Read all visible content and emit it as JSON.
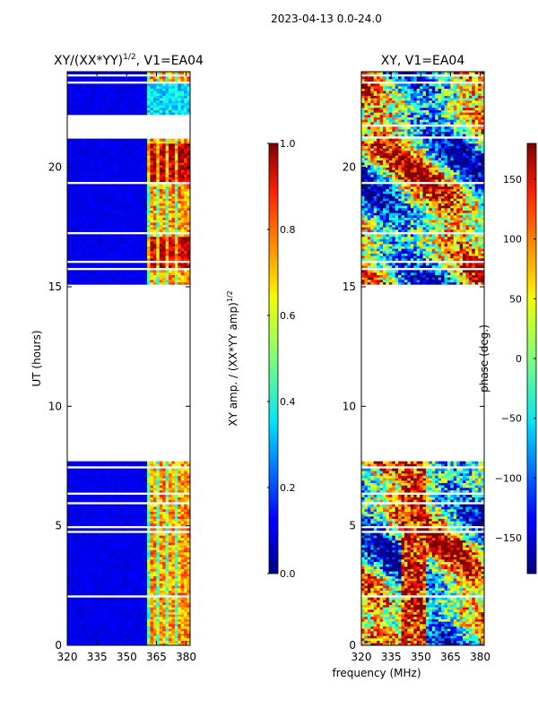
{
  "figure": {
    "suptitle": "2023-04-13 0.0-24.0",
    "xlabel": "frequency (MHz)"
  },
  "chart_data": [
    {
      "type": "heatmap",
      "title_main": "XY/(XX*YY)",
      "title_sup": "1/2",
      "title_rest": ", V1=EA04",
      "xlabel": "",
      "ylabel": "UT (hours)",
      "xlim": [
        320,
        382
      ],
      "ylim": [
        0,
        24
      ],
      "xticks": [
        320,
        335,
        350,
        365,
        380
      ],
      "yticks": [
        0,
        5,
        10,
        15,
        20
      ],
      "no_data_hours": [
        7.6,
        15.0
      ],
      "active_band_mhz": [
        360,
        382
      ],
      "colorbar": {
        "label_main": "XY amp. / (XX*YY amp)",
        "label_sup": "1/2",
        "range": [
          0.0,
          1.0
        ],
        "ticks": [
          "0.0",
          "0.2",
          "0.4",
          "0.6",
          "0.8",
          "1.0"
        ]
      }
    },
    {
      "type": "heatmap",
      "title_main": "XY, V1=EA04",
      "xlabel": "",
      "ylabel": "",
      "xlim": [
        320,
        382
      ],
      "ylim": [
        0,
        24
      ],
      "xticks": [
        320,
        335,
        350,
        365,
        380
      ],
      "yticks": [
        0,
        5,
        10,
        15,
        20
      ],
      "no_data_hours": [
        7.6,
        15.0
      ],
      "colorbar": {
        "label_main": "phase (deg.)",
        "range": [
          -180,
          180
        ],
        "ticks": [
          "−150",
          "−100",
          "−50",
          "0",
          "50",
          "100",
          "150"
        ]
      }
    }
  ]
}
